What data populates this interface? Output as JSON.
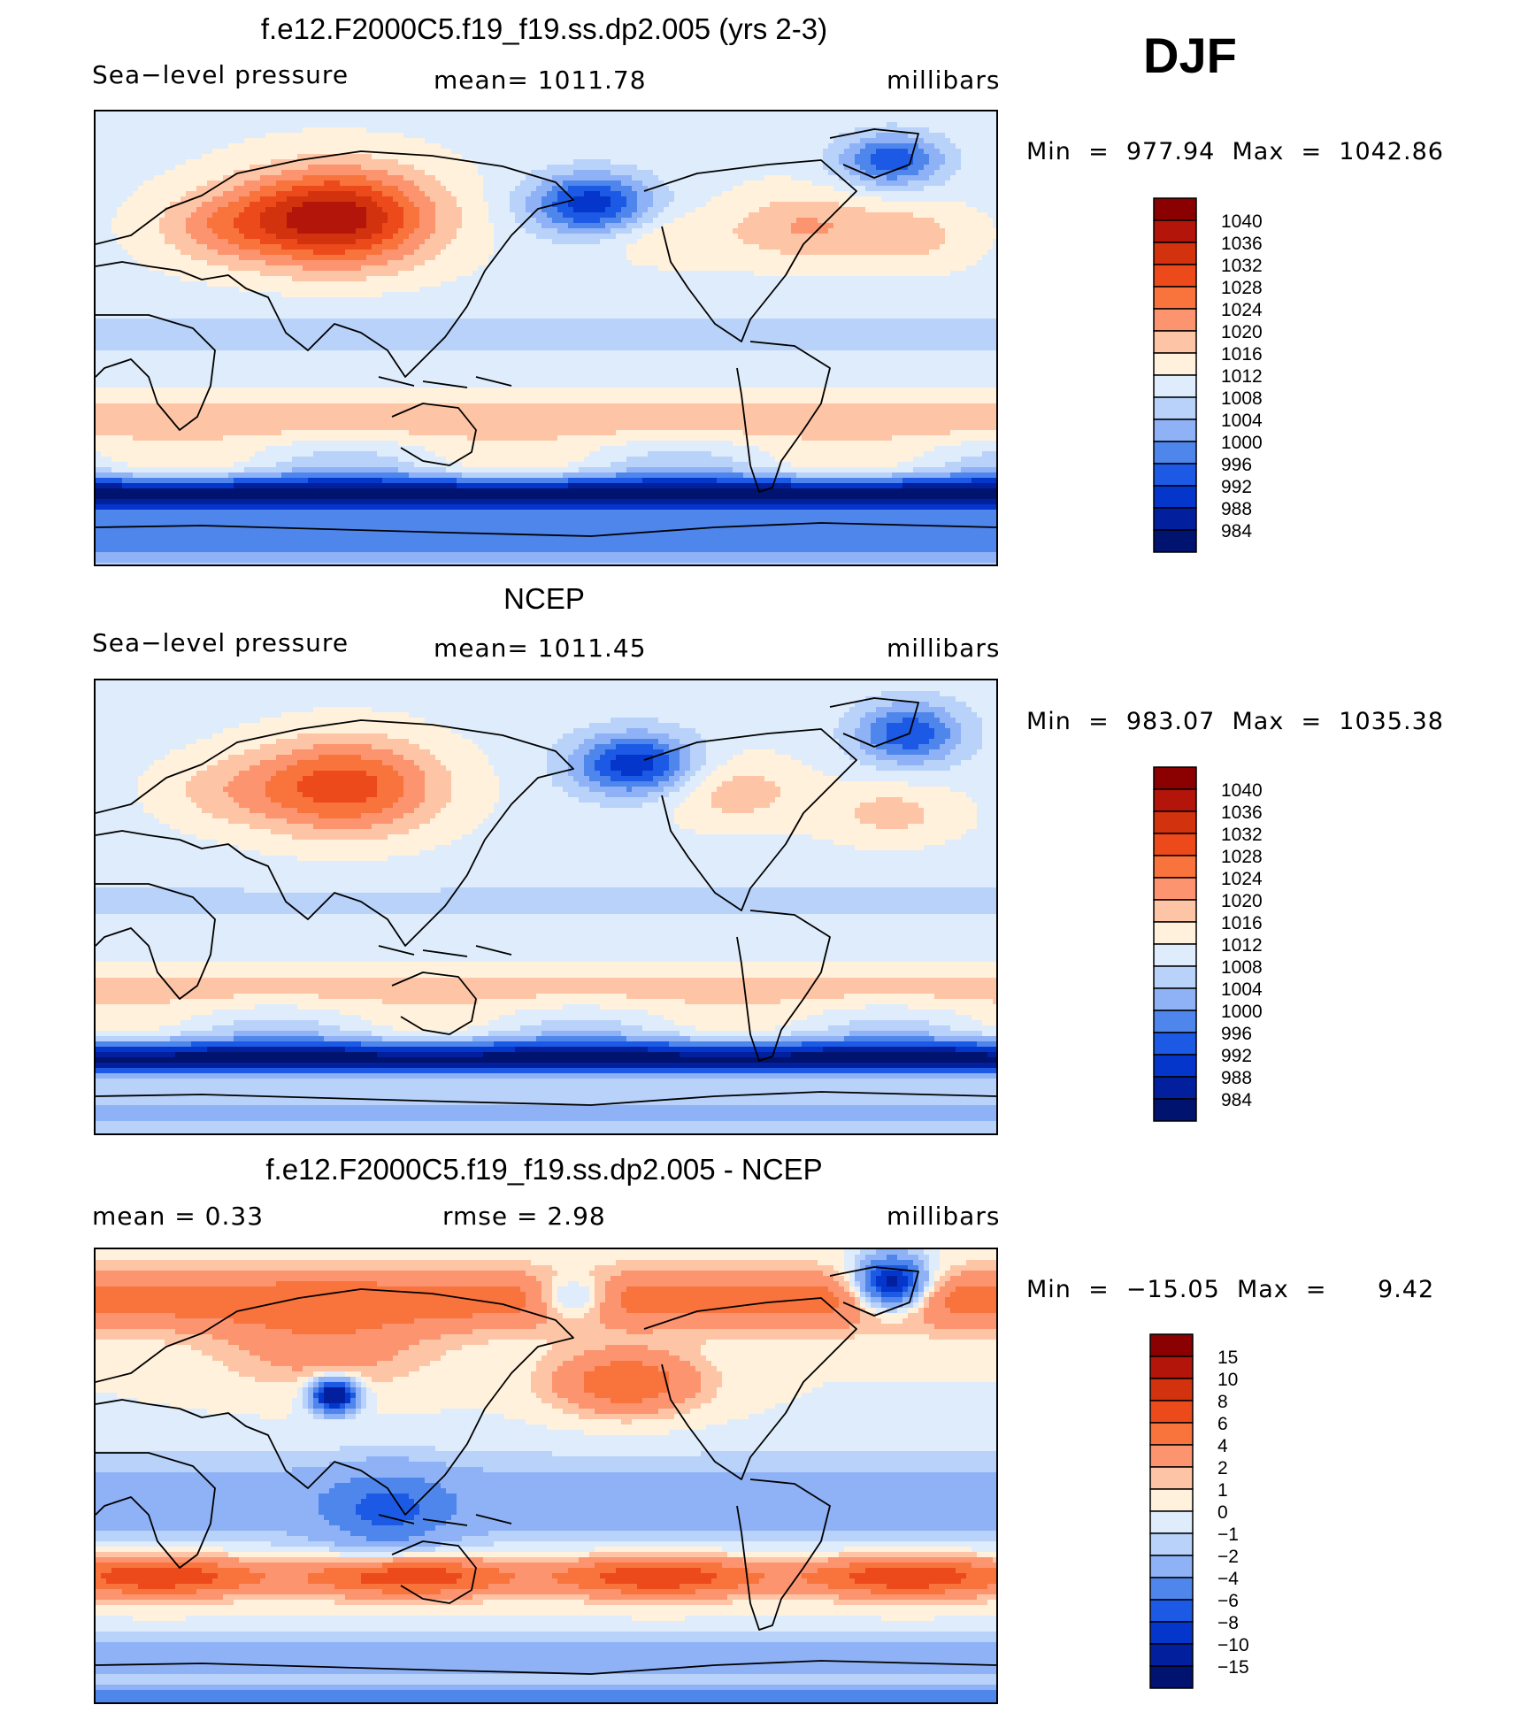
{
  "overall_label": "DJF",
  "chart_data": [
    {
      "type": "heatmap",
      "title": "f.e12.F2000C5.f19_f19.ss.dp2.005 (yrs 2-3)",
      "left_label": "Sea−level pressure",
      "center_label": "mean=  1011.78",
      "right_label": "millibars",
      "min_max": "Min  =  977.94  Max  =  1042.86",
      "colorbar_levels": [
        "1040",
        "1036",
        "1032",
        "1028",
        "1024",
        "1020",
        "1016",
        "1012",
        "1008",
        "1004",
        "1000",
        "996",
        "992",
        "988",
        "984"
      ],
      "colorbar_colors": [
        "#8b0000",
        "#b4150a",
        "#d3320e",
        "#ec4a1b",
        "#f9733c",
        "#fc9470",
        "#fdc5a5",
        "#fff1dc",
        "#dfecfb",
        "#b8d2fa",
        "#8fb2f6",
        "#4f86ec",
        "#1c5ae5",
        "#0436cc",
        "#021f9e",
        "#00136e"
      ],
      "field": "model"
    },
    {
      "type": "heatmap",
      "title": "NCEP",
      "left_label": "Sea−level pressure",
      "center_label": "mean=  1011.45",
      "right_label": "millibars",
      "min_max": "Min  =  983.07  Max  =  1035.38",
      "colorbar_levels": [
        "1040",
        "1036",
        "1032",
        "1028",
        "1024",
        "1020",
        "1016",
        "1012",
        "1008",
        "1004",
        "1000",
        "996",
        "992",
        "988",
        "984"
      ],
      "colorbar_colors": [
        "#8b0000",
        "#b4150a",
        "#d3320e",
        "#ec4a1b",
        "#f9733c",
        "#fc9470",
        "#fdc5a5",
        "#fff1dc",
        "#dfecfb",
        "#b8d2fa",
        "#8fb2f6",
        "#4f86ec",
        "#1c5ae5",
        "#0436cc",
        "#021f9e",
        "#00136e"
      ],
      "field": "obs"
    },
    {
      "type": "heatmap",
      "title": "f.e12.F2000C5.f19_f19.ss.dp2.005 - NCEP",
      "left_label": "mean  =      0.33",
      "center_label": "rmse  =      2.98",
      "right_label": "millibars",
      "min_max": "Min  =  −15.05  Max  =      9.42",
      "colorbar_levels": [
        "15",
        "10",
        "8",
        "6",
        "4",
        "2",
        "1",
        "0",
        "−1",
        "−2",
        "−4",
        "−6",
        "−8",
        "−10",
        "−15"
      ],
      "colorbar_colors": [
        "#8b0000",
        "#b4150a",
        "#d3320e",
        "#ec4a1b",
        "#f9733c",
        "#fc9470",
        "#fdc5a5",
        "#fff1dc",
        "#dfecfb",
        "#b8d2fa",
        "#8fb2f6",
        "#4f86ec",
        "#1c5ae5",
        "#0436cc",
        "#021f9e",
        "#00136e"
      ],
      "field": "diff"
    }
  ]
}
